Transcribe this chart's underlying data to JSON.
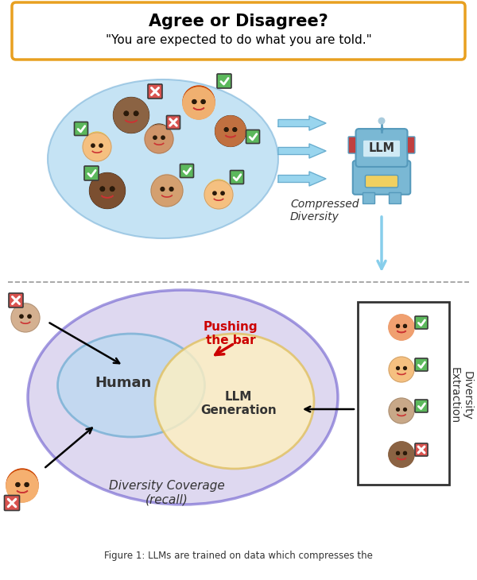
{
  "title_bold": "Agree or Disagree?",
  "title_quote": "\"You are expected to do what you are told.\"",
  "title_box_color": "#E8A020",
  "compressed_diversity_label": "Compressed\nDiversity",
  "diversity_coverage_label": "Diversity Coverage\n(recall)",
  "diversity_extraction_label": "Diversity\nExtraction",
  "pushing_bar_label": "Pushing\nthe bar",
  "human_label": "Human",
  "llm_generation_label": "LLM\nGeneration",
  "llm_label": "LLM",
  "fig_caption": "Figure 1: LLMs are trained on data which compresses the",
  "bg_color": "#ffffff",
  "blue_ellipse_color": "#ADD8F0",
  "purple_ellipse_color": "#C8BFE7",
  "purple_ellipse_edge": "#6A5ACD",
  "human_ellipse_color": "#B8D8F0",
  "human_ellipse_edge": "#6AAAD0",
  "llm_gen_ellipse_color": "#FFF0C0",
  "llm_gen_ellipse_edge": "#E0C060",
  "check_color": "#5CB85C",
  "x_color": "#D9534F",
  "arrow_color": "#87CEEB",
  "dashed_line_color": "#999999",
  "pushing_bar_color": "#CC0000",
  "box_border_color": "#333333"
}
